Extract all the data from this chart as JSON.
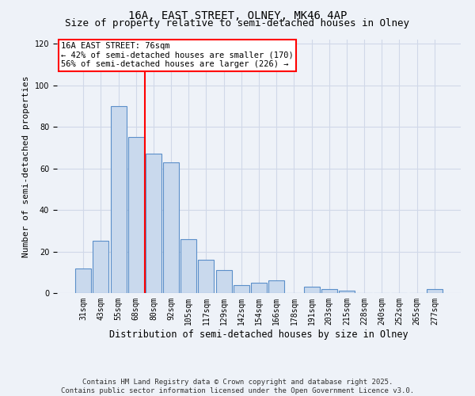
{
  "title": "16A, EAST STREET, OLNEY, MK46 4AP",
  "subtitle": "Size of property relative to semi-detached houses in Olney",
  "xlabel": "Distribution of semi-detached houses by size in Olney",
  "ylabel": "Number of semi-detached properties",
  "bar_labels": [
    "31sqm",
    "43sqm",
    "55sqm",
    "68sqm",
    "80sqm",
    "92sqm",
    "105sqm",
    "117sqm",
    "129sqm",
    "142sqm",
    "154sqm",
    "166sqm",
    "178sqm",
    "191sqm",
    "203sqm",
    "215sqm",
    "228sqm",
    "240sqm",
    "252sqm",
    "265sqm",
    "277sqm"
  ],
  "bar_values": [
    12,
    25,
    90,
    75,
    67,
    63,
    26,
    16,
    11,
    4,
    5,
    6,
    0,
    3,
    2,
    1,
    0,
    0,
    0,
    0,
    2
  ],
  "bar_color": "#c9d9ed",
  "bar_edge_color": "#5b8fc9",
  "grid_color": "#d0d8e8",
  "background_color": "#eef2f8",
  "vline_x": 3.5,
  "vline_color": "red",
  "annotation_title": "16A EAST STREET: 76sqm",
  "annotation_line1": "← 42% of semi-detached houses are smaller (170)",
  "annotation_line2": "56% of semi-detached houses are larger (226) →",
  "annotation_box_color": "white",
  "annotation_box_edge_color": "red",
  "ylim": [
    0,
    122
  ],
  "yticks": [
    0,
    20,
    40,
    60,
    80,
    100,
    120
  ],
  "footer": "Contains HM Land Registry data © Crown copyright and database right 2025.\nContains public sector information licensed under the Open Government Licence v3.0.",
  "title_fontsize": 10,
  "subtitle_fontsize": 9,
  "xlabel_fontsize": 8.5,
  "ylabel_fontsize": 8,
  "tick_fontsize": 7,
  "annotation_fontsize": 7.5,
  "footer_fontsize": 6.5
}
